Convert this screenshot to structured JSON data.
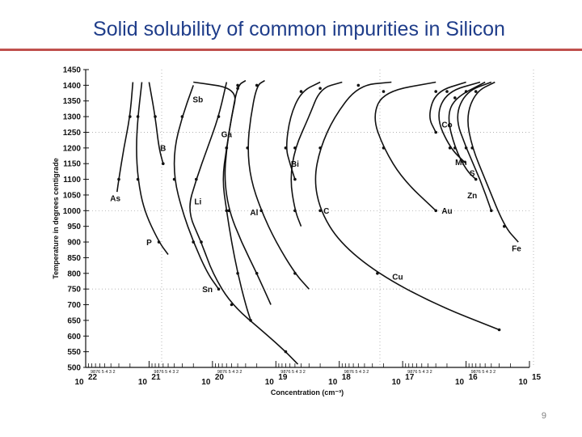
{
  "slide": {
    "title": "Solid solubility of common impurities in Silicon",
    "page_number": "9",
    "accent_color": "#c0504d",
    "title_color": "#1f3d8a"
  },
  "chart_data": {
    "type": "line",
    "ylabel": "Temperature in degrees centigrade",
    "xlabel": "Concentration (cm⁻³)",
    "x_scale": "log",
    "x_reversed": true,
    "xlim": [
      1e+22,
      1000000000000000.0
    ],
    "ylim": [
      500,
      1450
    ],
    "y_ticks": [
      1450,
      1400,
      1350,
      1300,
      1250,
      1200,
      1150,
      1100,
      1050,
      1000,
      950,
      900,
      850,
      800,
      750,
      700,
      650,
      600,
      550,
      500
    ],
    "x_decades": [
      {
        "base": "10",
        "exp": "22",
        "value": 1e+22
      },
      {
        "base": "10",
        "exp": "21",
        "value": 1e+21
      },
      {
        "base": "10",
        "exp": "20",
        "value": 1e+20
      },
      {
        "base": "10",
        "exp": "19",
        "value": 1e+19
      },
      {
        "base": "10",
        "exp": "18",
        "value": 1e+18
      },
      {
        "base": "10",
        "exp": "17",
        "value": 1e+17
      },
      {
        "base": "10",
        "exp": "16",
        "value": 1e+16
      },
      {
        "base": "10",
        "exp": "15",
        "value": 1000000000000000.0
      }
    ],
    "minor_tick_labels": "9876 5 4  3  2",
    "series": [
      {
        "name": "As",
        "points": [
          [
            1.8e+21,
            1410
          ],
          [
            2e+21,
            1300
          ],
          [
            2.5e+21,
            1200
          ],
          [
            3e+21,
            1100
          ],
          [
            3.2e+21,
            1060
          ]
        ]
      },
      {
        "name": "P",
        "points": [
          [
            1.3e+21,
            1410
          ],
          [
            1.5e+21,
            1300
          ],
          [
            1.6e+21,
            1200
          ],
          [
            1.5e+21,
            1100
          ],
          [
            1.2e+21,
            1000
          ],
          [
            7e+20,
            900
          ],
          [
            5e+20,
            860
          ]
        ]
      },
      {
        "name": "B",
        "points": [
          [
            1e+21,
            1410
          ],
          [
            8e+20,
            1300
          ],
          [
            7e+20,
            1200
          ],
          [
            6e+20,
            1150
          ]
        ]
      },
      {
        "name": "Sb",
        "points": [
          [
            2e+20,
            1410
          ],
          [
            4e+19,
            1390
          ],
          [
            5e+19,
            1300
          ],
          [
            6e+19,
            1200
          ],
          [
            7e+19,
            1100
          ],
          [
            6e+19,
            1000
          ],
          [
            5e+19,
            900
          ],
          [
            4e+19,
            800
          ],
          [
            3e+19,
            700
          ],
          [
            2.5e+19,
            650
          ]
        ]
      },
      {
        "name": "Ga",
        "points": [
          [
            3e+19,
            1415
          ],
          [
            4e+19,
            1400
          ],
          [
            5e+19,
            1300
          ],
          [
            6e+19,
            1200
          ],
          [
            6.5e+19,
            1100
          ],
          [
            5.5e+19,
            1000
          ],
          [
            3.5e+19,
            900
          ],
          [
            2e+19,
            800
          ],
          [
            1.2e+19,
            700
          ]
        ]
      },
      {
        "name": "Al",
        "points": [
          [
            1.5e+19,
            1415
          ],
          [
            2e+19,
            1400
          ],
          [
            2.5e+19,
            1300
          ],
          [
            2.8e+19,
            1200
          ],
          [
            2.5e+19,
            1100
          ],
          [
            1.7e+19,
            1000
          ],
          [
            1e+19,
            900
          ],
          [
            5e+18,
            800
          ],
          [
            3e+18,
            750
          ]
        ]
      },
      {
        "name": "Li",
        "points": [
          [
            6e+19,
            1410
          ],
          [
            8e+19,
            1300
          ],
          [
            1.2e+20,
            1200
          ],
          [
            1.8e+20,
            1100
          ],
          [
            2.5e+20,
            1000
          ],
          [
            1.5e+20,
            900
          ],
          [
            1e+20,
            800
          ],
          [
            5e+19,
            700
          ],
          [
            1.5e+19,
            610
          ],
          [
            7e+18,
            550
          ],
          [
            4.5e+18,
            510
          ]
        ]
      },
      {
        "name": "Sn",
        "points": [
          [
            2e+20,
            1400
          ],
          [
            3e+20,
            1300
          ],
          [
            4e+20,
            1200
          ],
          [
            4e+20,
            1100
          ],
          [
            3e+20,
            1000
          ],
          [
            2e+20,
            900
          ],
          [
            1.2e+20,
            800
          ],
          [
            8e+19,
            750
          ]
        ]
      },
      {
        "name": "Bi",
        "points": [
          [
            2e+18,
            1410
          ],
          [
            4e+18,
            1380
          ],
          [
            6e+18,
            1300
          ],
          [
            7e+18,
            1200
          ],
          [
            6e+18,
            1150
          ],
          [
            5e+18,
            1100
          ]
        ]
      },
      {
        "name": "C",
        "points": [
          [
            9e+17,
            1410
          ],
          [
            2e+18,
            1390
          ],
          [
            3e+18,
            1300
          ],
          [
            5e+18,
            1200
          ],
          [
            6e+18,
            1100
          ],
          [
            5e+18,
            1000
          ],
          [
            4e+18,
            950
          ]
        ]
      },
      {
        "name": "Cu",
        "points": [
          [
            1.5e+17,
            1410
          ],
          [
            5e+17,
            1400
          ],
          [
            1.2e+18,
            1300
          ],
          [
            2e+18,
            1200
          ],
          [
            2.5e+18,
            1100
          ],
          [
            2e+18,
            1000
          ],
          [
            1e+18,
            900
          ],
          [
            2.5e+17,
            800
          ],
          [
            3e+16,
            700
          ],
          [
            3000000000000000.0,
            620
          ]
        ]
      },
      {
        "name": "Au",
        "points": [
          [
            3e+16,
            1410
          ],
          [
            2e+17,
            1380
          ],
          [
            3e+17,
            1300
          ],
          [
            2e+17,
            1200
          ],
          [
            1e+17,
            1100
          ],
          [
            3e+16,
            1000
          ]
        ]
      },
      {
        "name": "Co",
        "points": [
          [
            1e+16,
            1410
          ],
          [
            3e+16,
            1380
          ],
          [
            4e+16,
            1300
          ],
          [
            3e+16,
            1250
          ]
        ]
      },
      {
        "name": "Mn",
        "points": [
          [
            6000000000000000.0,
            1410
          ],
          [
            2e+16,
            1380
          ],
          [
            3e+16,
            1300
          ],
          [
            1.8e+16,
            1200
          ],
          [
            1e+16,
            1150
          ]
        ]
      },
      {
        "name": "S",
        "points": [
          [
            5000000000000000.0,
            1410
          ],
          [
            1.5e+16,
            1360
          ],
          [
            2e+16,
            1300
          ],
          [
            1.5e+16,
            1200
          ],
          [
            1e+16,
            1130
          ],
          [
            7000000000000000.0,
            1100
          ]
        ]
      },
      {
        "name": "Zn",
        "points": [
          [
            4000000000000000.0,
            1410
          ],
          [
            1e+16,
            1380
          ],
          [
            1.5e+16,
            1300
          ],
          [
            1e+16,
            1200
          ],
          [
            6000000000000000.0,
            1100
          ],
          [
            4000000000000000.0,
            1000
          ]
        ]
      },
      {
        "name": "Fe",
        "points": [
          [
            3500000000000000.0,
            1410
          ],
          [
            7000000000000000.0,
            1380
          ],
          [
            1e+16,
            1300
          ],
          [
            8000000000000000.0,
            1200
          ],
          [
            5000000000000000.0,
            1100
          ],
          [
            2500000000000000.0,
            950
          ],
          [
            1500000000000000.0,
            900
          ]
        ]
      }
    ]
  }
}
